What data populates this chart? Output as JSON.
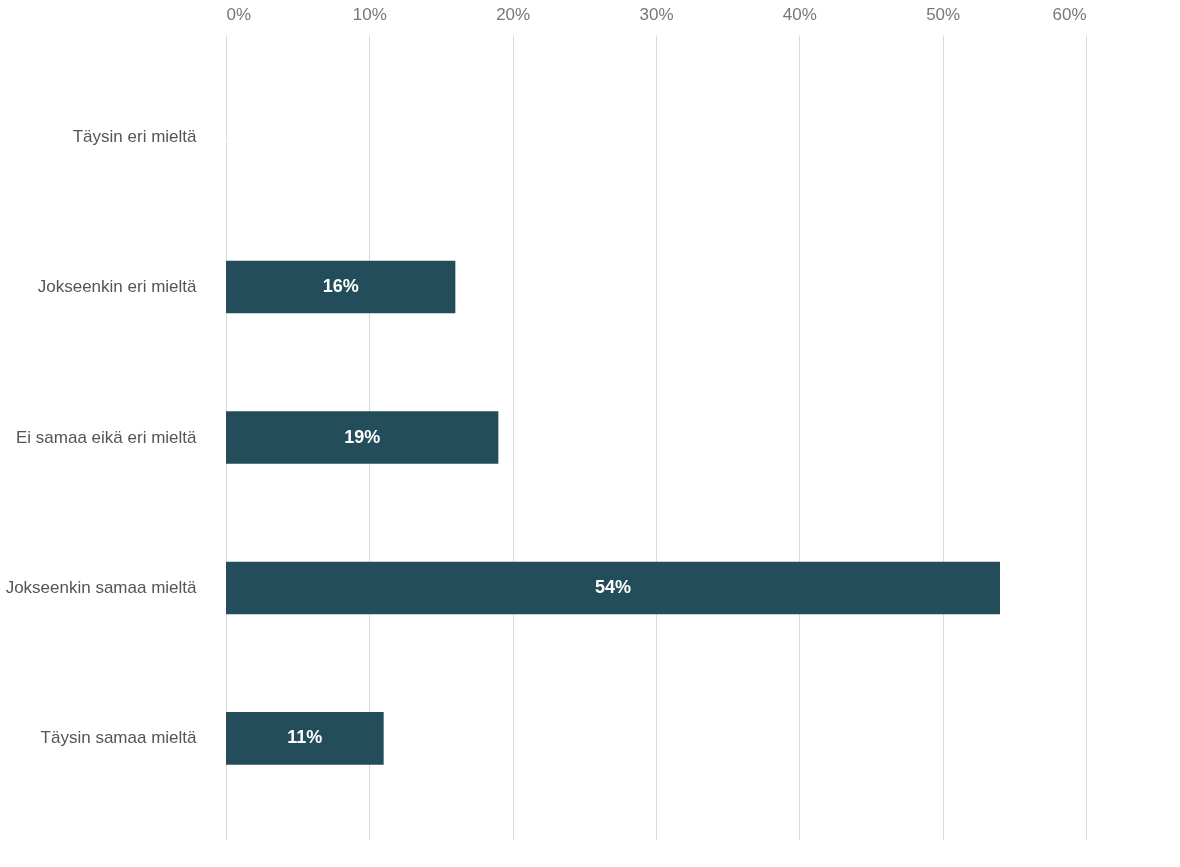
{
  "chart_data": {
    "type": "bar",
    "orientation": "horizontal",
    "categories": [
      "Täysin eri mieltä",
      "Jokseenkin eri mieltä",
      "Ei samaa eikä eri mieltä",
      "Jokseenkin samaa mieltä",
      "Täysin samaa mieltä"
    ],
    "values": [
      0,
      16,
      19,
      54,
      11
    ],
    "value_labels": [
      null,
      "16%",
      "19%",
      "54%",
      "11%"
    ],
    "color": "#234d5a",
    "xlim": [
      0,
      60
    ],
    "xticks": [
      {
        "value": 0,
        "label": "0%"
      },
      {
        "value": 10,
        "label": "10%"
      },
      {
        "value": 20,
        "label": "20%"
      },
      {
        "value": 30,
        "label": "30%"
      },
      {
        "value": 40,
        "label": "40%"
      },
      {
        "value": 50,
        "label": "50%"
      },
      {
        "value": 60,
        "label": "60%"
      }
    ],
    "grid": "x"
  }
}
